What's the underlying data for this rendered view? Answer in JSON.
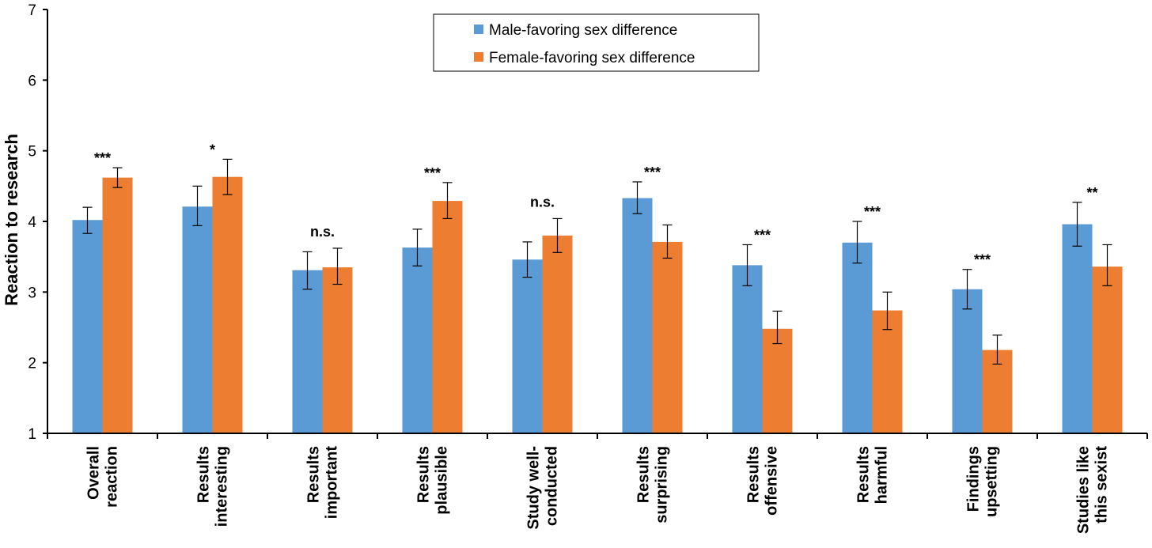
{
  "chart_data": {
    "type": "bar",
    "ylabel": "Reaction to research",
    "xlabel": "",
    "ylim": [
      1,
      7
    ],
    "yticks": [
      1,
      2,
      3,
      4,
      5,
      6,
      7
    ],
    "grid": false,
    "legend_position": "top-center",
    "categories": [
      [
        "Overall",
        "reaction"
      ],
      [
        "Results",
        "interesting"
      ],
      [
        "Results",
        "important"
      ],
      [
        "Results",
        "plausible"
      ],
      [
        "Study well-",
        "conducted"
      ],
      [
        "Results",
        "surprising"
      ],
      [
        "Results",
        "offensive"
      ],
      [
        "Results",
        "harmful"
      ],
      [
        "Findings",
        "upsetting"
      ],
      [
        "Studies like",
        "this sexist"
      ]
    ],
    "significance": [
      "***",
      "*",
      "n.s.",
      "***",
      "n.s.",
      "***",
      "***",
      "***",
      "***",
      "**"
    ],
    "series": [
      {
        "name": "Male-favoring sex difference",
        "color": "#5B9BD5",
        "values": [
          4.02,
          4.21,
          3.31,
          3.63,
          3.46,
          4.33,
          3.38,
          3.7,
          3.04,
          3.96
        ],
        "err_low": [
          3.83,
          3.94,
          3.04,
          3.37,
          3.21,
          4.11,
          3.09,
          3.41,
          2.76,
          3.65
        ],
        "err_high": [
          4.2,
          4.5,
          3.57,
          3.89,
          3.71,
          4.56,
          3.67,
          4.0,
          3.32,
          4.27
        ]
      },
      {
        "name": "Female-favoring sex difference",
        "color": "#ED7D31",
        "values": [
          4.62,
          4.63,
          3.35,
          4.29,
          3.8,
          3.71,
          2.48,
          2.74,
          2.18,
          3.36
        ],
        "err_low": [
          4.48,
          4.38,
          3.11,
          4.04,
          3.56,
          3.48,
          2.27,
          2.47,
          1.98,
          3.09
        ],
        "err_high": [
          4.76,
          4.88,
          3.62,
          4.55,
          4.04,
          3.95,
          2.73,
          3.0,
          2.39,
          3.67
        ]
      }
    ]
  }
}
